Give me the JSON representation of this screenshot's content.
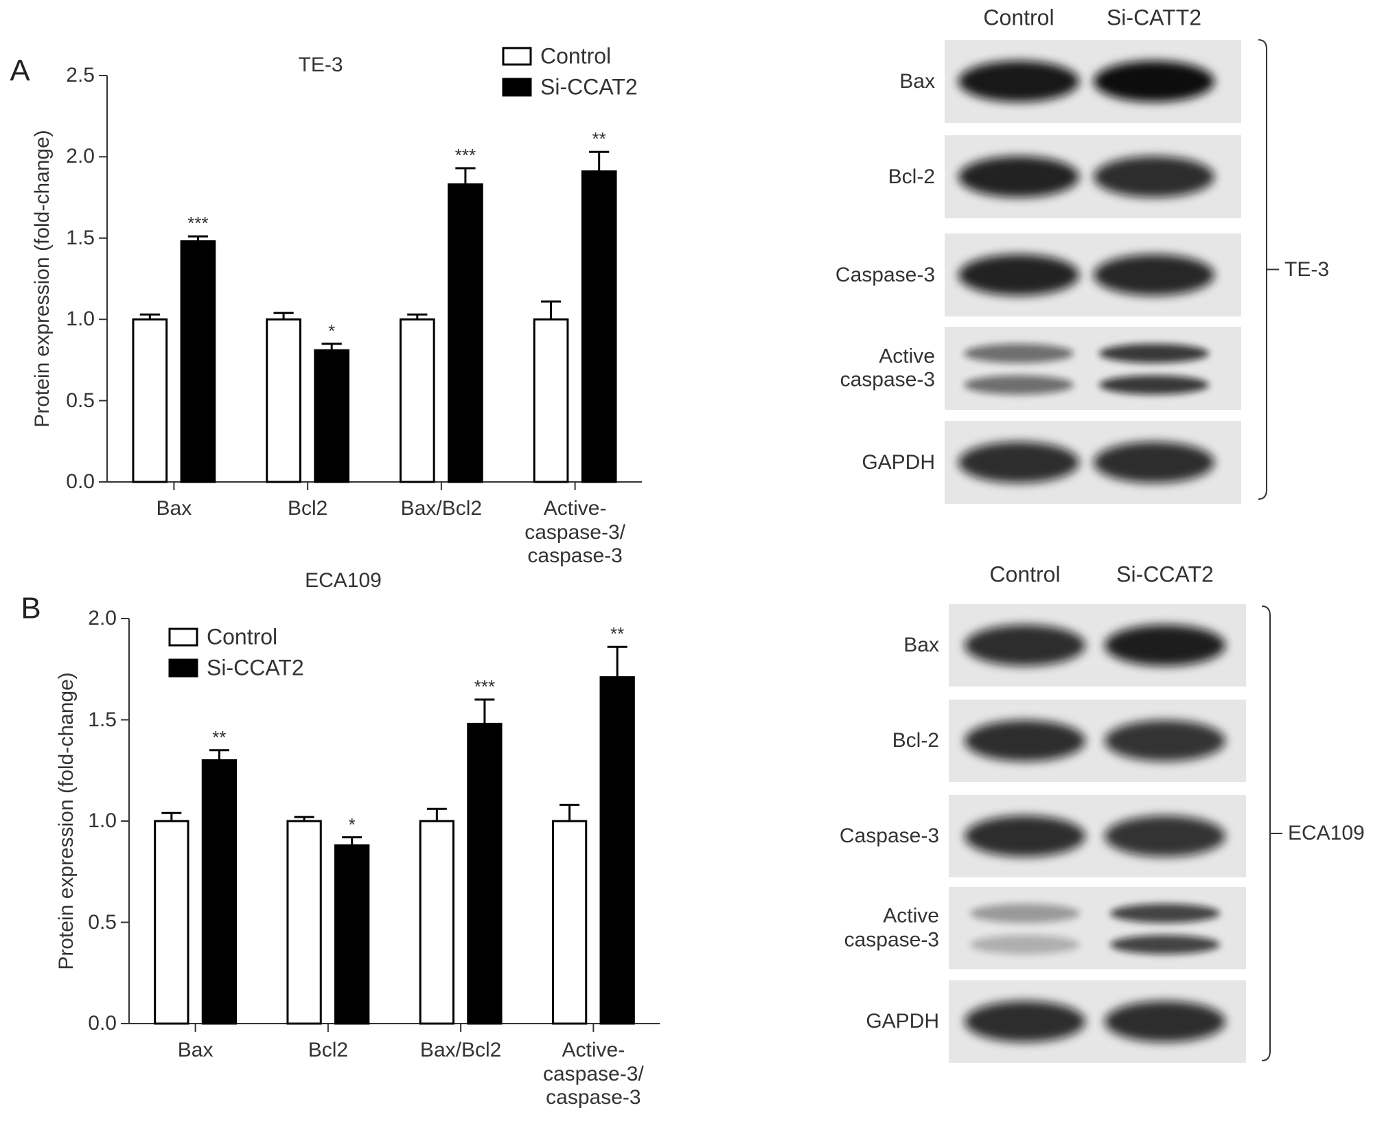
{
  "chart_data": [
    {
      "type": "bar",
      "panel_label": "A",
      "title": "TE-3",
      "y_label": "Protein expression (fold-change)",
      "categories": [
        "Bax",
        "Bcl2",
        "Bax/Bcl2",
        "Active-\ncaspase-3/\ncaspase-3"
      ],
      "series": [
        {
          "name": "Control",
          "color": "#ffffff",
          "values": [
            1,
            1,
            1,
            1
          ],
          "errors": [
            0.03,
            0.04,
            0.03,
            0.11
          ]
        },
        {
          "name": "Si-CCAT2",
          "color": "#000000",
          "values": [
            1.48,
            0.81,
            1.83,
            1.91
          ],
          "errors": [
            0.03,
            0.04,
            0.1,
            0.12
          ],
          "significance": [
            "***",
            "*",
            "***",
            "**"
          ]
        }
      ],
      "ylim": [
        0,
        2.5
      ],
      "yticks": [
        {
          "value": 0,
          "label": "0.0"
        },
        {
          "value": 0.5,
          "label": "0.5"
        },
        {
          "value": 1,
          "label": "1.0"
        },
        {
          "value": 1.5,
          "label": "1.5"
        },
        {
          "value": 2,
          "label": "2.0"
        },
        {
          "value": 2.5,
          "label": "2.5"
        }
      ],
      "legend": "top-right"
    },
    {
      "type": "bar",
      "panel_label": "B",
      "title": "ECA109",
      "y_label": "Protein expression (fold-change)",
      "categories": [
        "Bax",
        "Bcl2",
        "Bax/Bcl2",
        "Active-\ncaspase-3/\ncaspase-3"
      ],
      "series": [
        {
          "name": "Control",
          "color": "#ffffff",
          "values": [
            1,
            1,
            1,
            1
          ],
          "errors": [
            0.04,
            0.02,
            0.06,
            0.08
          ]
        },
        {
          "name": "Si-CCAT2",
          "color": "#000000",
          "values": [
            1.3,
            0.88,
            1.48,
            1.71
          ],
          "errors": [
            0.05,
            0.04,
            0.12,
            0.15
          ],
          "significance": [
            "**",
            "*",
            "***",
            "**"
          ]
        }
      ],
      "ylim": [
        0,
        2
      ],
      "yticks": [
        {
          "value": 0,
          "label": "0.0"
        },
        {
          "value": 0.5,
          "label": "0.5"
        },
        {
          "value": 1,
          "label": "1.0"
        },
        {
          "value": 1.5,
          "label": "1.5"
        },
        {
          "value": 2,
          "label": "2.0"
        }
      ],
      "legend": "top-left"
    }
  ],
  "blots": [
    {
      "cell_line": "TE-3",
      "columns": [
        "Control",
        "Si-CATT2"
      ],
      "rows": [
        "Bax",
        "Bcl-2",
        "Caspase-3",
        "Active\ncaspase-3",
        "GAPDH"
      ]
    },
    {
      "cell_line": "ECA109",
      "columns": [
        "Control",
        "Si-CCAT2"
      ],
      "rows": [
        "Bax",
        "Bcl-2",
        "Caspase-3",
        "Active\ncaspase-3",
        "GAPDH"
      ]
    }
  ]
}
